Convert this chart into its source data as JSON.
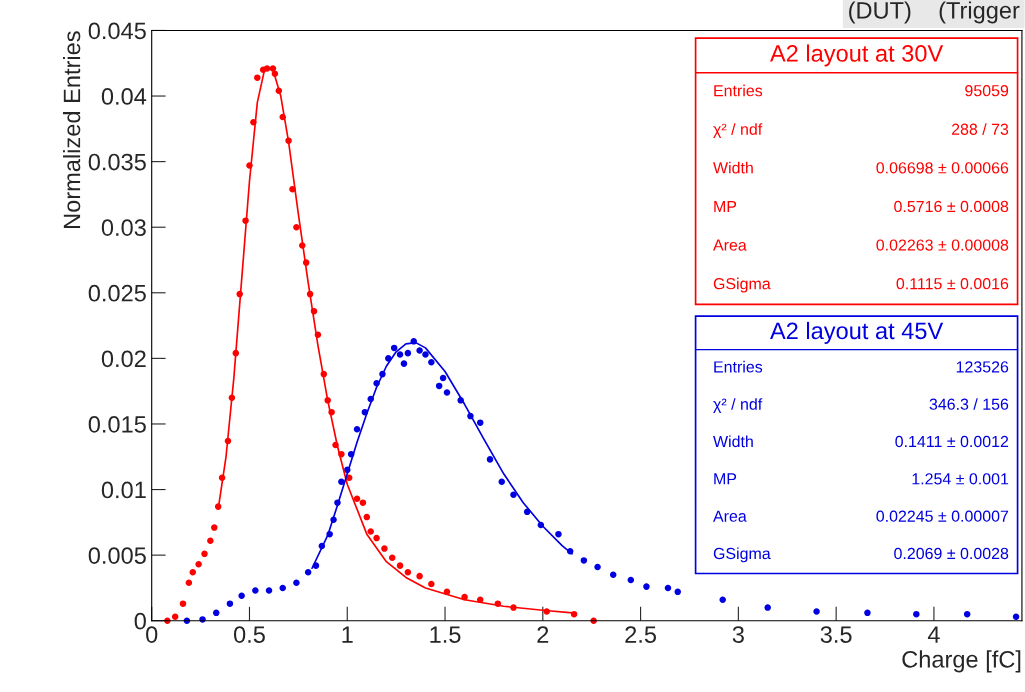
{
  "chart_data": {
    "type": "scatter",
    "xlabel": "Charge [fC]",
    "ylabel": "Normalized Entries",
    "xlim": [
      0,
      4.45
    ],
    "ylim": [
      0,
      0.045
    ],
    "xticks": [
      0,
      0.5,
      1,
      1.5,
      2,
      2.5,
      3,
      3.5,
      4
    ],
    "yticks": [
      0,
      0.005,
      0.01,
      0.015,
      0.02,
      0.025,
      0.03,
      0.035,
      0.04,
      0.045
    ],
    "grid": false,
    "legend": "right",
    "series": [
      {
        "name": "A2 layout at 30V",
        "color": "#ff0000",
        "marker": "circle",
        "x": [
          0.08,
          0.12,
          0.16,
          0.19,
          0.21,
          0.24,
          0.27,
          0.3,
          0.32,
          0.34,
          0.36,
          0.39,
          0.41,
          0.43,
          0.45,
          0.48,
          0.5,
          0.52,
          0.54,
          0.57,
          0.59,
          0.62,
          0.63,
          0.65,
          0.67,
          0.7,
          0.72,
          0.74,
          0.77,
          0.79,
          0.81,
          0.83,
          0.85,
          0.88,
          0.9,
          0.92,
          0.94,
          0.97,
          1.01,
          1.05,
          1.08,
          1.1,
          1.12,
          1.15,
          1.19,
          1.23,
          1.27,
          1.31,
          1.37,
          1.43,
          1.51,
          1.6,
          1.68,
          1.77,
          1.85,
          2.02,
          2.16,
          2.26
        ],
        "values": [
          0,
          0.0003,
          0.0013,
          0.0029,
          0.0037,
          0.0043,
          0.0051,
          0.0061,
          0.0071,
          0.0087,
          0.0109,
          0.0137,
          0.017,
          0.0204,
          0.0249,
          0.0305,
          0.0347,
          0.038,
          0.0414,
          0.042,
          0.0421,
          0.0421,
          0.0417,
          0.0404,
          0.0384,
          0.0366,
          0.0329,
          0.03,
          0.0286,
          0.0273,
          0.0249,
          0.0236,
          0.0218,
          0.0188,
          0.0168,
          0.0159,
          0.0134,
          0.0127,
          0.0109,
          0.0093,
          0.009,
          0.0079,
          0.0068,
          0.0063,
          0.0055,
          0.0048,
          0.0042,
          0.0037,
          0.0034,
          0.0028,
          0.0022,
          0.0018,
          0.0016,
          0.0013,
          0.001,
          0.0007,
          0.0005,
          0
        ]
      },
      {
        "name": "A2 layout at 45V",
        "color": "#0000e0",
        "marker": "circle",
        "x": [
          0.18,
          0.26,
          0.33,
          0.4,
          0.46,
          0.53,
          0.6,
          0.67,
          0.74,
          0.8,
          0.84,
          0.87,
          0.91,
          0.93,
          0.95,
          0.97,
          1.0,
          1.02,
          1.05,
          1.09,
          1.12,
          1.15,
          1.18,
          1.21,
          1.24,
          1.27,
          1.29,
          1.31,
          1.34,
          1.37,
          1.4,
          1.43,
          1.47,
          1.49,
          1.51,
          1.58,
          1.63,
          1.68,
          1.73,
          1.79,
          1.85,
          1.92,
          1.99,
          2.08,
          2.14,
          2.21,
          2.28,
          2.36,
          2.45,
          2.53,
          2.64,
          2.69,
          2.92,
          3.15,
          3.4,
          3.66,
          3.91,
          4.17,
          4.42
        ],
        "values": [
          0,
          0.0001,
          0.0006,
          0.0013,
          0.0019,
          0.0023,
          0.0023,
          0.0025,
          0.0029,
          0.0037,
          0.0042,
          0.0057,
          0.0066,
          0.0077,
          0.009,
          0.0106,
          0.0115,
          0.0127,
          0.0146,
          0.0159,
          0.0169,
          0.0181,
          0.0188,
          0.02,
          0.0208,
          0.0203,
          0.0196,
          0.0204,
          0.0213,
          0.0206,
          0.0203,
          0.0197,
          0.0179,
          0.0185,
          0.0174,
          0.0168,
          0.0156,
          0.0151,
          0.0123,
          0.0106,
          0.0096,
          0.0083,
          0.0073,
          0.0066,
          0.0053,
          0.0046,
          0.0041,
          0.0035,
          0.0031,
          0.0026,
          0.0025,
          0.0022,
          0.0016,
          0.001,
          0.0007,
          0.0006,
          0.0005,
          0.0005,
          0.0003
        ]
      },
      {
        "color": "#ff0000",
        "type": "line",
        "x": [
          0.34,
          0.38,
          0.42,
          0.46,
          0.5,
          0.54,
          0.58,
          0.62,
          0.66,
          0.7,
          0.75,
          0.8,
          0.85,
          0.9,
          0.95,
          1.0,
          1.1,
          1.2,
          1.3,
          1.4,
          1.6,
          1.8,
          2.0,
          2.15
        ],
        "values": [
          0.0085,
          0.0125,
          0.0185,
          0.026,
          0.0335,
          0.0395,
          0.0422,
          0.042,
          0.04,
          0.0365,
          0.031,
          0.0258,
          0.021,
          0.0168,
          0.0133,
          0.0104,
          0.0066,
          0.0045,
          0.0033,
          0.0025,
          0.0016,
          0.0011,
          0.0008,
          0.0006
        ]
      },
      {
        "color": "#0000e0",
        "type": "line",
        "x": [
          0.82,
          0.9,
          0.95,
          1.0,
          1.05,
          1.1,
          1.15,
          1.2,
          1.25,
          1.3,
          1.35,
          1.4,
          1.5,
          1.6,
          1.7,
          1.8,
          1.9,
          2.0,
          2.1,
          2.15
        ],
        "values": [
          0.004,
          0.0065,
          0.0088,
          0.0112,
          0.0136,
          0.0158,
          0.0178,
          0.0194,
          0.0205,
          0.0211,
          0.0212,
          0.0208,
          0.019,
          0.0165,
          0.0138,
          0.0112,
          0.009,
          0.0072,
          0.0057,
          0.0051
        ]
      }
    ],
    "annotations": [
      "(DUT)    (Trigger",
      "Entries",
      "95059",
      "χ² / ndf",
      "288 / 73",
      "Width",
      "0.06698 ± 0.00066",
      "MP",
      "0.5716 ± 0.0008",
      "Area",
      "0.02263 ± 0.00008",
      "GSigma",
      "0.1115 ± 0.0016",
      "Entries",
      "123526",
      "χ² / ndf",
      "346.3 / 156",
      "Width",
      "0.1411 ± 0.0012",
      "MP",
      "1.254 ± 0.001",
      "Area",
      "0.02245 ± 0.00007",
      "GSigma",
      "0.2069 ± 0.0028"
    ]
  }
}
